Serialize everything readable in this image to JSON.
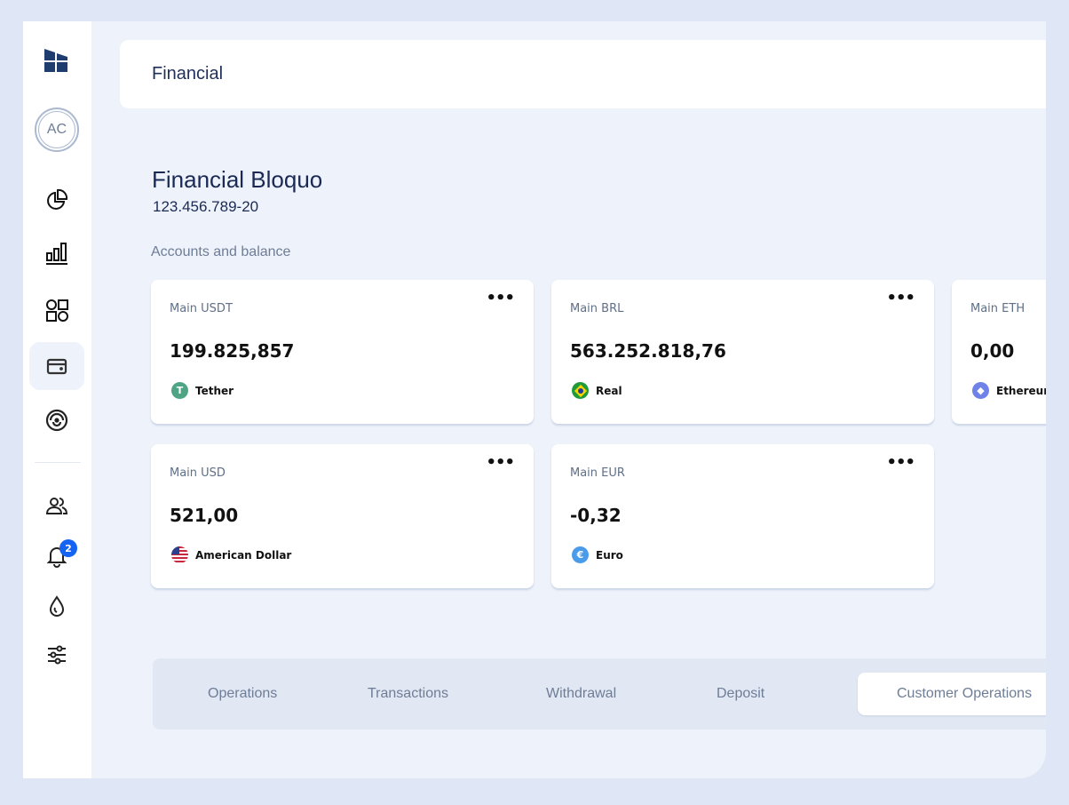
{
  "sidebar": {
    "avatar_initials": "AC",
    "notification_count": "2",
    "active_item": "wallet",
    "items": [
      {
        "icon": "pie-chart-icon"
      },
      {
        "icon": "bar-chart-icon"
      },
      {
        "icon": "apps-icon"
      },
      {
        "icon": "wallet-icon"
      },
      {
        "icon": "radar-icon"
      },
      {
        "icon": "users-icon"
      },
      {
        "icon": "bell-icon"
      },
      {
        "icon": "drop-icon"
      },
      {
        "icon": "sliders-icon"
      }
    ]
  },
  "header": {
    "title": "Financial"
  },
  "company": {
    "name": "Financial Bloquo",
    "document": "123.456.789-20"
  },
  "section_label": "Accounts and balance",
  "accounts": [
    {
      "name": "Main USDT",
      "balance": "199.825,857",
      "currency": "Tether",
      "color": "#4fa583"
    },
    {
      "name": "Main BRL",
      "balance": "563.252.818,76",
      "currency": "Real",
      "color": "#1f9b3a"
    },
    {
      "name": "Main ETH",
      "balance": "0,00",
      "currency": "Ethereum",
      "color": "#6f82e8"
    },
    {
      "name": "Main USD",
      "balance": "521,00",
      "currency": "American Dollar",
      "color": "#c8283c"
    },
    {
      "name": "Main EUR",
      "balance": "-0,32",
      "currency": "Euro",
      "color": "#4a9bea"
    }
  ],
  "more_label": "•••",
  "tabs": [
    {
      "label": "Operations"
    },
    {
      "label": "Transactions"
    },
    {
      "label": "Withdrawal"
    },
    {
      "label": "Deposit"
    },
    {
      "label": "Customer Operations"
    }
  ],
  "active_tab": "Customer Operations"
}
